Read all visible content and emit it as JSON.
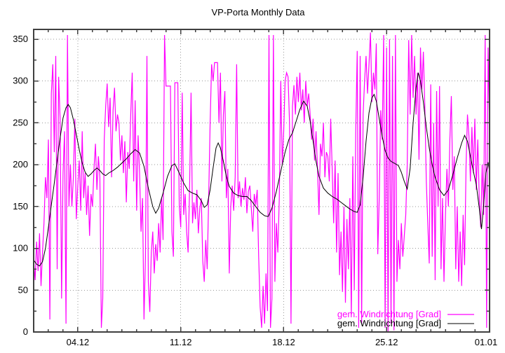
{
  "title": "VP-Porta Monthly Data",
  "legend": {
    "position": "bottom-right",
    "entries": [
      {
        "label": "gem. Windrichtung [Grad]",
        "color": "#ff00ff"
      },
      {
        "label": "gem. Windrichtung [Grad]",
        "color": "#000000"
      }
    ]
  },
  "chart_data": {
    "type": "line",
    "title": "VP-Porta Monthly Data",
    "xlabel": "",
    "ylabel": "",
    "ylim": [
      0,
      362
    ],
    "xlim_days": [
      0,
      31
    ],
    "grid": "dotted at major ticks, mirrored inward ticks on all borders",
    "legend_position": "bottom-right",
    "y_major_ticks": [
      0,
      50,
      100,
      150,
      200,
      250,
      300,
      350
    ],
    "y_minor_tick_step": 25,
    "x_major_ticks": [
      {
        "day": 3,
        "label": "04.12"
      },
      {
        "day": 10,
        "label": "11.12"
      },
      {
        "day": 17,
        "label": "18.12"
      },
      {
        "day": 24,
        "label": "25.12"
      },
      {
        "day": 31,
        "label": "01.01"
      }
    ],
    "x_minor_tick_step_days": 1,
    "series": [
      {
        "name": "gem. Windrichtung [Grad]",
        "color": "#ff00ff",
        "style": "measured-noisy",
        "x_start_day": 0,
        "x_step_days": 0.1,
        "values": [
          85,
          62,
          108,
          73,
          118,
          55,
          95,
          130,
          185,
          160,
          230,
          15,
          285,
          320,
          215,
          330,
          75,
          305,
          255,
          40,
          190,
          240,
          10,
          355,
          150,
          200,
          150,
          185,
          255,
          135,
          175,
          205,
          145,
          240,
          160,
          190,
          140,
          175,
          115,
          165,
          150,
          195,
          225,
          170,
          210,
          185,
          5,
          40,
          230,
          270,
          297,
          245,
          280,
          185,
          265,
          292,
          240,
          260,
          250,
          205,
          235,
          190,
          228,
          155,
          215,
          195,
          260,
          310,
          180,
          277,
          145,
          235,
          190,
          120,
          160,
          15,
          90,
          330,
          60,
          24,
          95,
          120,
          70,
          105,
          85,
          130,
          95,
          160,
          110,
          355,
          294,
          294,
          294,
          294,
          120,
          90,
          298,
          298,
          298,
          150,
          125,
          286,
          140,
          165,
          120,
          95,
          172,
          286,
          130,
          155,
          135,
          170,
          118,
          148,
          160,
          85,
          60,
          110,
          75,
          160,
          250,
          320,
          300,
          322,
          322,
          322,
          250,
          310,
          180,
          260,
          288,
          160,
          195,
          70,
          150,
          175,
          145,
          185,
          320,
          160,
          180,
          150,
          172,
          158,
          185,
          142,
          168,
          175,
          148,
          120,
          165,
          152,
          170,
          90,
          30,
          5,
          55,
          10,
          70,
          25,
          355,
          5,
          40,
          355,
          60,
          130,
          95,
          160,
          300,
          200,
          240,
          300,
          310,
          305,
          250,
          10,
          270,
          295,
          260,
          305,
          275,
          310,
          265,
          290,
          250,
          300,
          270,
          285,
          260,
          230,
          255,
          205,
          240,
          195,
          140,
          225,
          210,
          250,
          185,
          215,
          210,
          180,
          255,
          195,
          130,
          205,
          95,
          190,
          68,
          120,
          48,
          150,
          35,
          135,
          75,
          160,
          20,
          210,
          50,
          240,
          336,
          5,
          330,
          10,
          260,
          300,
          330,
          285,
          320,
          358,
          275,
          310,
          290,
          345,
          93,
          160,
          265,
          230,
          355,
          5,
          340,
          0,
          350,
          10,
          330,
          2,
          355,
          60,
          110,
          75,
          130,
          90,
          115,
          140,
          200,
          349,
          260,
          355,
          280,
          330,
          260,
          310,
          206,
          340,
          290,
          335,
          270,
          180,
          130,
          82,
          296,
          90,
          250,
          62,
          288,
          150,
          294,
          75,
          160,
          60,
          140,
          195,
          150,
          230,
          282,
          170,
          210,
          75,
          150,
          60,
          120,
          55,
          140,
          80,
          200,
          260,
          234,
          180,
          245,
          190,
          255,
          170,
          230,
          160,
          125,
          200,
          140,
          355,
          5,
          340,
          245
        ]
      },
      {
        "name": "gem. Windrichtung [Grad]",
        "color": "#000000",
        "style": "smoothed",
        "points": [
          [
            0,
            86
          ],
          [
            0.2,
            81
          ],
          [
            0.4,
            79
          ],
          [
            0.6,
            84
          ],
          [
            0.8,
            100
          ],
          [
            1,
            125
          ],
          [
            1.2,
            152
          ],
          [
            1.4,
            178
          ],
          [
            1.6,
            205
          ],
          [
            1.8,
            232
          ],
          [
            2,
            256
          ],
          [
            2.2,
            268
          ],
          [
            2.35,
            272
          ],
          [
            2.5,
            268
          ],
          [
            2.7,
            254
          ],
          [
            2.9,
            236
          ],
          [
            3.1,
            218
          ],
          [
            3.3,
            202
          ],
          [
            3.5,
            191
          ],
          [
            3.7,
            186
          ],
          [
            3.9,
            189
          ],
          [
            4.1,
            193
          ],
          [
            4.3,
            196
          ],
          [
            4.5,
            193
          ],
          [
            4.7,
            189
          ],
          [
            4.9,
            187
          ],
          [
            5.1,
            190
          ],
          [
            5.4,
            193
          ],
          [
            5.7,
            197
          ],
          [
            6,
            202
          ],
          [
            6.3,
            207
          ],
          [
            6.6,
            213
          ],
          [
            6.9,
            218
          ],
          [
            7.2,
            214
          ],
          [
            7.5,
            198
          ],
          [
            7.8,
            172
          ],
          [
            8.1,
            150
          ],
          [
            8.3,
            142
          ],
          [
            8.5,
            148
          ],
          [
            8.8,
            166
          ],
          [
            9.1,
            186
          ],
          [
            9.4,
            199
          ],
          [
            9.6,
            201
          ],
          [
            9.9,
            190
          ],
          [
            10.2,
            178
          ],
          [
            10.5,
            169
          ],
          [
            10.8,
            166
          ],
          [
            11.1,
            164
          ],
          [
            11.4,
            157
          ],
          [
            11.6,
            149
          ],
          [
            11.8,
            152
          ],
          [
            12,
            170
          ],
          [
            12.2,
            196
          ],
          [
            12.4,
            220
          ],
          [
            12.55,
            226
          ],
          [
            12.7,
            220
          ],
          [
            12.9,
            204
          ],
          [
            13.1,
            186
          ],
          [
            13.3,
            174
          ],
          [
            13.6,
            166
          ],
          [
            13.9,
            163
          ],
          [
            14.2,
            162
          ],
          [
            14.5,
            162
          ],
          [
            14.8,
            157
          ],
          [
            15.1,
            150
          ],
          [
            15.4,
            143
          ],
          [
            15.7,
            139
          ],
          [
            15.95,
            138
          ],
          [
            16.2,
            148
          ],
          [
            16.5,
            168
          ],
          [
            16.8,
            192
          ],
          [
            17.1,
            215
          ],
          [
            17.35,
            230
          ],
          [
            17.6,
            238
          ],
          [
            17.85,
            252
          ],
          [
            18.1,
            266
          ],
          [
            18.35,
            276
          ],
          [
            18.6,
            270
          ],
          [
            18.8,
            252
          ],
          [
            19,
            228
          ],
          [
            19.2,
            204
          ],
          [
            19.4,
            186
          ],
          [
            19.7,
            172
          ],
          [
            20,
            166
          ],
          [
            20.3,
            162
          ],
          [
            20.6,
            159
          ],
          [
            20.9,
            155
          ],
          [
            21.2,
            151
          ],
          [
            21.5,
            147
          ],
          [
            21.8,
            144
          ],
          [
            22,
            143
          ],
          [
            22.2,
            152
          ],
          [
            22.4,
            185
          ],
          [
            22.6,
            228
          ],
          [
            22.8,
            262
          ],
          [
            23,
            280
          ],
          [
            23.15,
            284
          ],
          [
            23.3,
            276
          ],
          [
            23.5,
            255
          ],
          [
            23.7,
            234
          ],
          [
            23.9,
            217
          ],
          [
            24.1,
            208
          ],
          [
            24.3,
            204
          ],
          [
            24.6,
            201
          ],
          [
            24.8,
            199
          ],
          [
            25,
            191
          ],
          [
            25.2,
            180
          ],
          [
            25.4,
            171
          ],
          [
            25.6,
            196
          ],
          [
            25.8,
            250
          ],
          [
            26,
            292
          ],
          [
            26.15,
            310
          ],
          [
            26.3,
            300
          ],
          [
            26.5,
            275
          ],
          [
            26.7,
            245
          ],
          [
            26.9,
            220
          ],
          [
            27.1,
            200
          ],
          [
            27.3,
            185
          ],
          [
            27.6,
            170
          ],
          [
            27.9,
            163
          ],
          [
            28.2,
            170
          ],
          [
            28.5,
            188
          ],
          [
            28.8,
            208
          ],
          [
            29.1,
            226
          ],
          [
            29.3,
            235
          ],
          [
            29.5,
            228
          ],
          [
            29.7,
            210
          ],
          [
            29.9,
            192
          ],
          [
            30.1,
            176
          ],
          [
            30.3,
            148
          ],
          [
            30.45,
            123
          ],
          [
            30.6,
            152
          ],
          [
            30.75,
            190
          ],
          [
            30.9,
            203
          ],
          [
            31,
            192
          ]
        ]
      }
    ]
  }
}
